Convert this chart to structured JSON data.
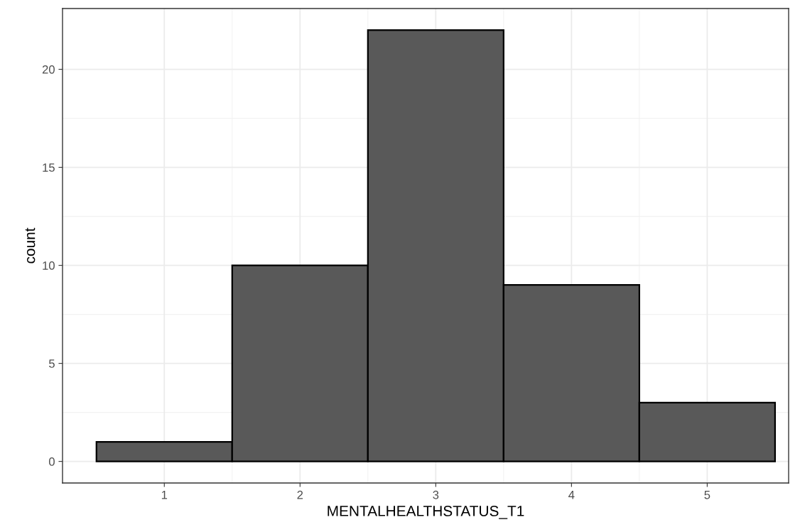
{
  "chart_data": {
    "type": "histogram",
    "xlabel": "MENTALHEALTHSTATUS_T1",
    "ylabel": "count",
    "bins": [
      0.5,
      1.5,
      2.5,
      3.5,
      4.5,
      5.5
    ],
    "values": [
      1,
      10,
      22,
      9,
      3
    ],
    "color": "#595959",
    "xlim": [
      0.25,
      5.6
    ],
    "xticks": [
      1,
      2,
      3,
      4,
      5
    ],
    "ylim": [
      -1.1,
      23.1
    ],
    "yticks": [
      0,
      5,
      10,
      15,
      20
    ],
    "grid": true
  }
}
